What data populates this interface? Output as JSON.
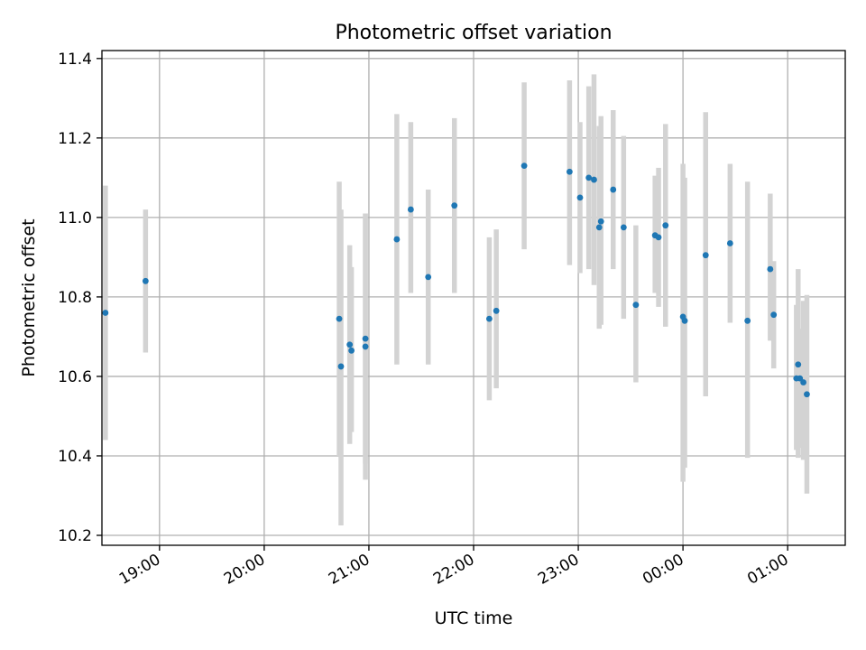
{
  "chart_data": {
    "type": "scatter",
    "title": "Photometric offset variation",
    "xlabel": "UTC time",
    "ylabel": "Photometric offset",
    "x_axis": "time",
    "xlim": [
      "18:27",
      "01:33"
    ],
    "ylim": [
      10.175,
      11.42
    ],
    "grid": true,
    "x_ticks": [
      "19:00",
      "20:00",
      "21:00",
      "22:00",
      "23:00",
      "00:00",
      "01:00"
    ],
    "y_ticks": [
      "10.2",
      "10.4",
      "10.6",
      "10.8",
      "11.0",
      "11.2",
      "11.4"
    ],
    "colors": {
      "point": "#1f77b4",
      "errorbar": "#d3d3d3"
    },
    "points": [
      {
        "t": "18:29",
        "y": 10.76,
        "lo": 10.44,
        "hi": 11.08
      },
      {
        "t": "18:52",
        "y": 10.84,
        "lo": 10.66,
        "hi": 11.02
      },
      {
        "t": "20:43",
        "y": 10.745,
        "lo": 10.4,
        "hi": 11.09
      },
      {
        "t": "20:44",
        "y": 10.625,
        "lo": 10.225,
        "hi": 11.02
      },
      {
        "t": "20:49",
        "y": 10.68,
        "lo": 10.43,
        "hi": 10.93
      },
      {
        "t": "20:50",
        "y": 10.665,
        "lo": 10.46,
        "hi": 10.875
      },
      {
        "t": "20:58",
        "y": 10.695,
        "lo": 10.38,
        "hi": 11.01
      },
      {
        "t": "20:58",
        "y": 10.675,
        "lo": 10.34,
        "hi": 11.01
      },
      {
        "t": "21:16",
        "y": 10.945,
        "lo": 10.63,
        "hi": 11.26
      },
      {
        "t": "21:24",
        "y": 11.02,
        "lo": 10.81,
        "hi": 11.24
      },
      {
        "t": "21:34",
        "y": 10.85,
        "lo": 10.63,
        "hi": 11.07
      },
      {
        "t": "21:49",
        "y": 11.03,
        "lo": 10.81,
        "hi": 11.25
      },
      {
        "t": "22:09",
        "y": 10.745,
        "lo": 10.54,
        "hi": 10.95
      },
      {
        "t": "22:13",
        "y": 10.765,
        "lo": 10.57,
        "hi": 10.97
      },
      {
        "t": "22:29",
        "y": 11.13,
        "lo": 10.92,
        "hi": 11.34
      },
      {
        "t": "22:55",
        "y": 11.115,
        "lo": 10.88,
        "hi": 11.345
      },
      {
        "t": "23:01",
        "y": 11.05,
        "lo": 10.86,
        "hi": 11.24
      },
      {
        "t": "23:06",
        "y": 11.1,
        "lo": 10.87,
        "hi": 11.33
      },
      {
        "t": "23:09",
        "y": 11.095,
        "lo": 10.83,
        "hi": 11.36
      },
      {
        "t": "23:12",
        "y": 10.975,
        "lo": 10.72,
        "hi": 11.23
      },
      {
        "t": "23:13",
        "y": 10.99,
        "lo": 10.73,
        "hi": 11.255
      },
      {
        "t": "23:20",
        "y": 11.07,
        "lo": 10.87,
        "hi": 11.27
      },
      {
        "t": "23:26",
        "y": 10.975,
        "lo": 10.745,
        "hi": 11.205
      },
      {
        "t": "23:33",
        "y": 10.78,
        "lo": 10.585,
        "hi": 10.98
      },
      {
        "t": "23:44",
        "y": 10.955,
        "lo": 10.81,
        "hi": 11.105
      },
      {
        "t": "23:46",
        "y": 10.95,
        "lo": 10.775,
        "hi": 11.125
      },
      {
        "t": "23:50",
        "y": 10.98,
        "lo": 10.725,
        "hi": 11.235
      },
      {
        "t": "00:00",
        "y": 10.75,
        "lo": 10.335,
        "hi": 11.135
      },
      {
        "t": "00:01",
        "y": 10.74,
        "lo": 10.37,
        "hi": 11.1
      },
      {
        "t": "00:13",
        "y": 10.905,
        "lo": 10.55,
        "hi": 11.265
      },
      {
        "t": "00:27",
        "y": 10.935,
        "lo": 10.735,
        "hi": 11.135
      },
      {
        "t": "00:37",
        "y": 10.74,
        "lo": 10.395,
        "hi": 11.09
      },
      {
        "t": "00:50",
        "y": 10.87,
        "lo": 10.69,
        "hi": 11.06
      },
      {
        "t": "00:52",
        "y": 10.755,
        "lo": 10.62,
        "hi": 10.89
      },
      {
        "t": "01:05",
        "y": 10.595,
        "lo": 10.415,
        "hi": 10.78
      },
      {
        "t": "01:06",
        "y": 10.63,
        "lo": 10.395,
        "hi": 10.87
      },
      {
        "t": "01:07",
        "y": 10.595,
        "lo": 10.42,
        "hi": 10.72
      },
      {
        "t": "01:09",
        "y": 10.585,
        "lo": 10.39,
        "hi": 10.79
      },
      {
        "t": "01:11",
        "y": 10.555,
        "lo": 10.305,
        "hi": 10.805
      }
    ]
  }
}
